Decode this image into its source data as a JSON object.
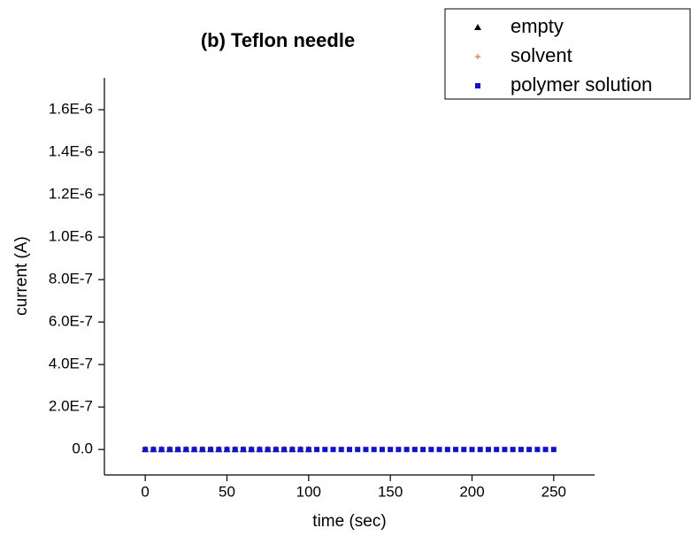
{
  "chart_data": {
    "type": "scatter",
    "title": "(b) Teflon needle",
    "x_label": "time (sec)",
    "y_label": "current (A)",
    "xlim": [
      -25,
      275
    ],
    "xticks": [
      0,
      50,
      100,
      150,
      200,
      250
    ],
    "ylim": [
      -1.2e-07,
      1.75e-06
    ],
    "yticks": [
      {
        "value": 0,
        "label": "0.0"
      },
      {
        "value": 2e-07,
        "label": "2.0E-7"
      },
      {
        "value": 4e-07,
        "label": "4.0E-7"
      },
      {
        "value": 6e-07,
        "label": "6.0E-7"
      },
      {
        "value": 8e-07,
        "label": "8.0E-7"
      },
      {
        "value": 1e-06,
        "label": "1.0E-6"
      },
      {
        "value": 1.2e-06,
        "label": "1.2E-6"
      },
      {
        "value": 1.4e-06,
        "label": "1.4E-6"
      },
      {
        "value": 1.6e-06,
        "label": "1.6E-6"
      }
    ],
    "legend_position": "upper right",
    "series": [
      {
        "name": "empty",
        "color": "#000000",
        "marker": "triangle",
        "x": [
          0,
          5,
          10,
          15,
          20,
          25,
          30,
          35,
          40,
          45,
          50,
          55,
          60,
          65,
          70,
          75,
          80,
          85,
          90,
          95,
          100
        ],
        "values": [
          0,
          0,
          0,
          0,
          0,
          0,
          0,
          0,
          0,
          0,
          0,
          0,
          0,
          0,
          0,
          0,
          0,
          0,
          0,
          0,
          0
        ]
      },
      {
        "name": "solvent",
        "color": "#e8552a",
        "marker": "plus",
        "x": [
          0,
          5,
          10,
          15,
          20,
          25,
          30,
          35,
          40,
          45,
          50,
          55,
          60,
          65,
          70,
          75,
          80,
          85,
          90,
          95,
          100
        ],
        "values": [
          0,
          0,
          0,
          0,
          0,
          0,
          0,
          0,
          0,
          0,
          0,
          0,
          0,
          0,
          0,
          0,
          0,
          0,
          0,
          0,
          0
        ]
      },
      {
        "name": "polymer solution",
        "color": "#1010d8",
        "marker": "square",
        "x": [
          0,
          5,
          10,
          15,
          20,
          25,
          30,
          35,
          40,
          45,
          50,
          55,
          60,
          65,
          70,
          75,
          80,
          85,
          90,
          95,
          100,
          105,
          110,
          115,
          120,
          125,
          130,
          135,
          140,
          145,
          150,
          155,
          160,
          165,
          170,
          175,
          180,
          185,
          190,
          195,
          200,
          205,
          210,
          215,
          220,
          225,
          230,
          235,
          240,
          245,
          250
        ],
        "values": [
          0,
          0,
          0,
          0,
          0,
          0,
          0,
          0,
          0,
          0,
          0,
          0,
          0,
          0,
          0,
          0,
          0,
          0,
          0,
          0,
          0,
          0,
          0,
          0,
          0,
          0,
          0,
          0,
          0,
          0,
          0,
          0,
          0,
          0,
          0,
          0,
          0,
          0,
          0,
          0,
          0,
          0,
          0,
          0,
          0,
          0,
          0,
          0,
          0,
          0,
          0
        ]
      }
    ]
  }
}
